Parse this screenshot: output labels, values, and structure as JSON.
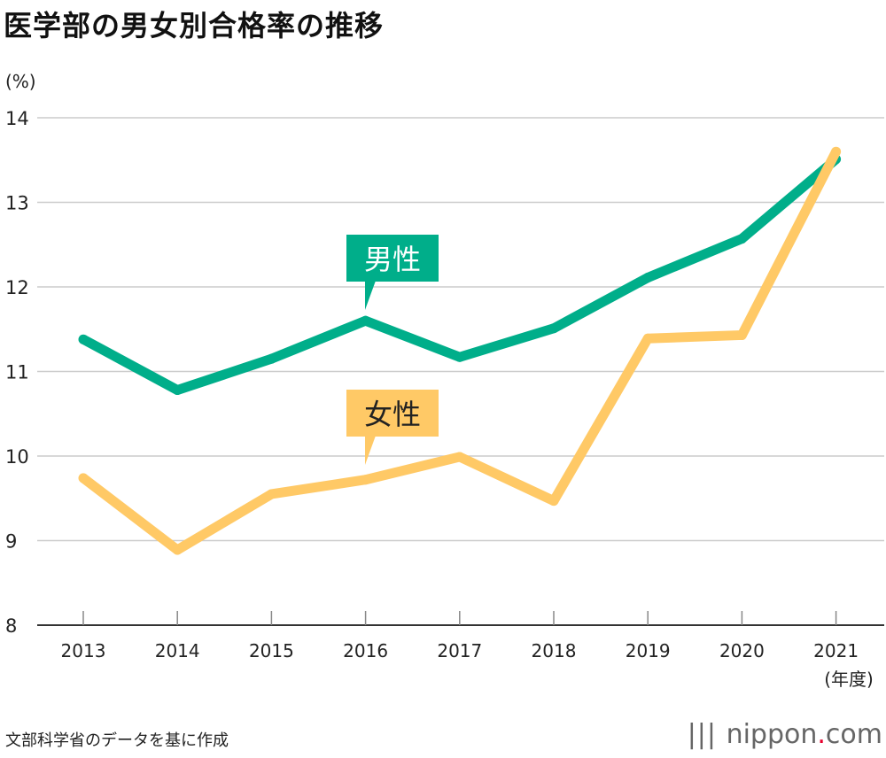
{
  "chart_data": {
    "type": "line",
    "title": "医学部の男女別合格率の推移",
    "ylabel": "(%)",
    "xlabel": "(年度)",
    "categories": [
      "2013",
      "2014",
      "2015",
      "2016",
      "2017",
      "2018",
      "2019",
      "2020",
      "2021"
    ],
    "yticks": [
      8,
      9,
      10,
      11,
      12,
      13,
      14
    ],
    "ylim": [
      8,
      14
    ],
    "grid": true,
    "series": [
      {
        "name": "男性",
        "color": "#00ae8a",
        "values": [
          11.38,
          10.78,
          11.15,
          11.6,
          11.17,
          11.51,
          12.11,
          12.57,
          13.51
        ]
      },
      {
        "name": "女性",
        "color": "#ffc966",
        "values": [
          9.74,
          8.89,
          9.55,
          9.72,
          9.99,
          9.47,
          11.39,
          11.43,
          13.6
        ]
      }
    ]
  },
  "source": "文部科学省のデータを基に作成",
  "logo": {
    "name": "nippon",
    "dot": ".",
    "tld": "com"
  }
}
